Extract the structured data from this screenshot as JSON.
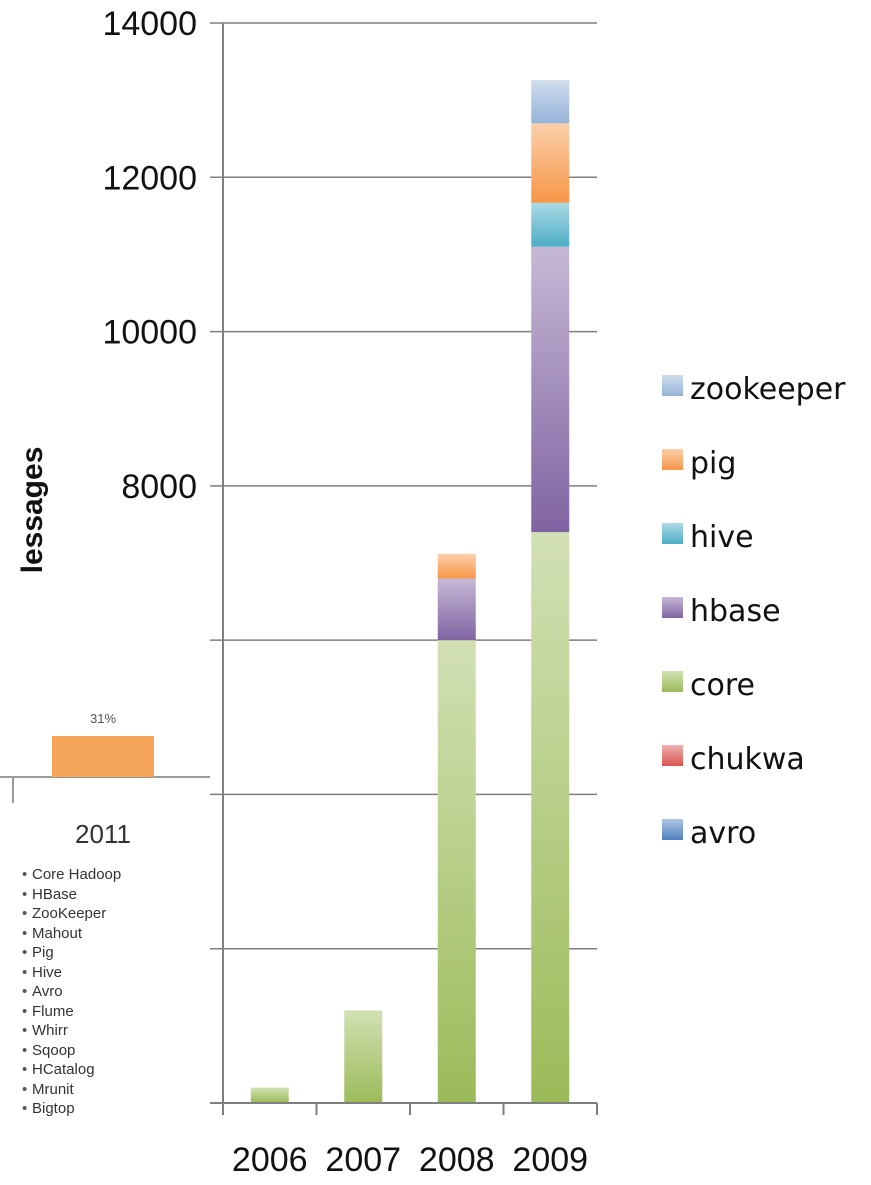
{
  "chart_data": {
    "type": "bar",
    "stacked": true,
    "ylabel": "lessages",
    "ylim": [
      0,
      14000
    ],
    "yticks": [
      8000,
      10000,
      12000,
      14000
    ],
    "grid": true,
    "legend_position": "right",
    "categories": [
      "2006",
      "2007",
      "2008",
      "2009"
    ],
    "series": [
      {
        "name": "avro",
        "color": "#4f81bd",
        "values": [
          0,
          0,
          0,
          0
        ]
      },
      {
        "name": "chukwa",
        "color": "#d9534f",
        "values": [
          0,
          0,
          0,
          0
        ]
      },
      {
        "name": "core",
        "color": "#9bbb59",
        "values": [
          200,
          1200,
          6000,
          7400
        ]
      },
      {
        "name": "hbase",
        "color": "#8064a2",
        "values": [
          0,
          0,
          800,
          3700
        ]
      },
      {
        "name": "hive",
        "color": "#4bacc6",
        "values": [
          0,
          0,
          0,
          570
        ]
      },
      {
        "name": "pig",
        "color": "#f79646",
        "values": [
          0,
          0,
          320,
          1030
        ]
      },
      {
        "name": "zookeeper",
        "color": "#95b3d7",
        "values": [
          0,
          0,
          0,
          560
        ]
      }
    ]
  },
  "inset": {
    "bar_label": "31%",
    "bar_color": "#f4a55a",
    "year": "2011",
    "list": [
      "Core Hadoop",
      "HBase",
      "ZooKeeper",
      "Mahout",
      "Pig",
      "Hive",
      "Avro",
      "Flume",
      "Whirr",
      "Sqoop",
      "HCatalog",
      "Mrunit",
      "Bigtop"
    ]
  }
}
